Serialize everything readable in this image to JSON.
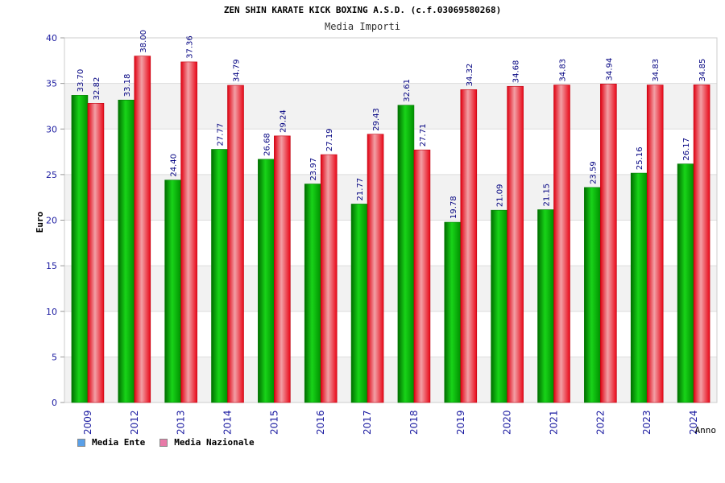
{
  "chart_data": {
    "type": "bar",
    "title": "ZEN SHIN KARATE KICK BOXING A.S.D. (c.f.03069580268)",
    "subtitle": "Media Importi",
    "xlabel": "Anno",
    "ylabel": "Euro",
    "ylim": [
      0,
      40
    ],
    "yticks": [
      0,
      5,
      10,
      15,
      20,
      25,
      30,
      35,
      40
    ],
    "grid": true,
    "legend_position": "bottom-left",
    "categories": [
      "2009",
      "2012",
      "2013",
      "2014",
      "2015",
      "2016",
      "2017",
      "2018",
      "2019",
      "2020",
      "2021",
      "2022",
      "2023",
      "2024"
    ],
    "series": [
      {
        "name": "Media Ente",
        "color": "#00aa00",
        "values": [
          33.7,
          33.18,
          24.4,
          27.77,
          26.68,
          23.97,
          21.77,
          32.61,
          19.78,
          21.09,
          21.15,
          23.59,
          25.16,
          26.17
        ],
        "labels": [
          "33.70",
          "33.18",
          "24.40",
          "27.77",
          "26.68",
          "23.97",
          "21.77",
          "32.61",
          "19.78",
          "21.09",
          "21.15",
          "23.59",
          "25.16",
          "26.17"
        ]
      },
      {
        "name": "Media Nazionale",
        "color": "#ee1122",
        "values": [
          32.82,
          38.0,
          37.36,
          34.79,
          29.24,
          27.19,
          29.43,
          27.71,
          34.32,
          34.68,
          34.83,
          34.94,
          34.83,
          34.85
        ],
        "labels": [
          "32.82",
          "38.00",
          "37.36",
          "34.79",
          "29.24",
          "27.19",
          "29.43",
          "27.71",
          "34.32",
          "34.68",
          "34.83",
          "34.94",
          "34.83",
          "34.85"
        ]
      }
    ]
  },
  "legend": {
    "items": [
      {
        "label": "Media Ente",
        "color": "#5aa0e8"
      },
      {
        "label": "Media Nazionale",
        "color": "#e87aa8"
      }
    ]
  }
}
